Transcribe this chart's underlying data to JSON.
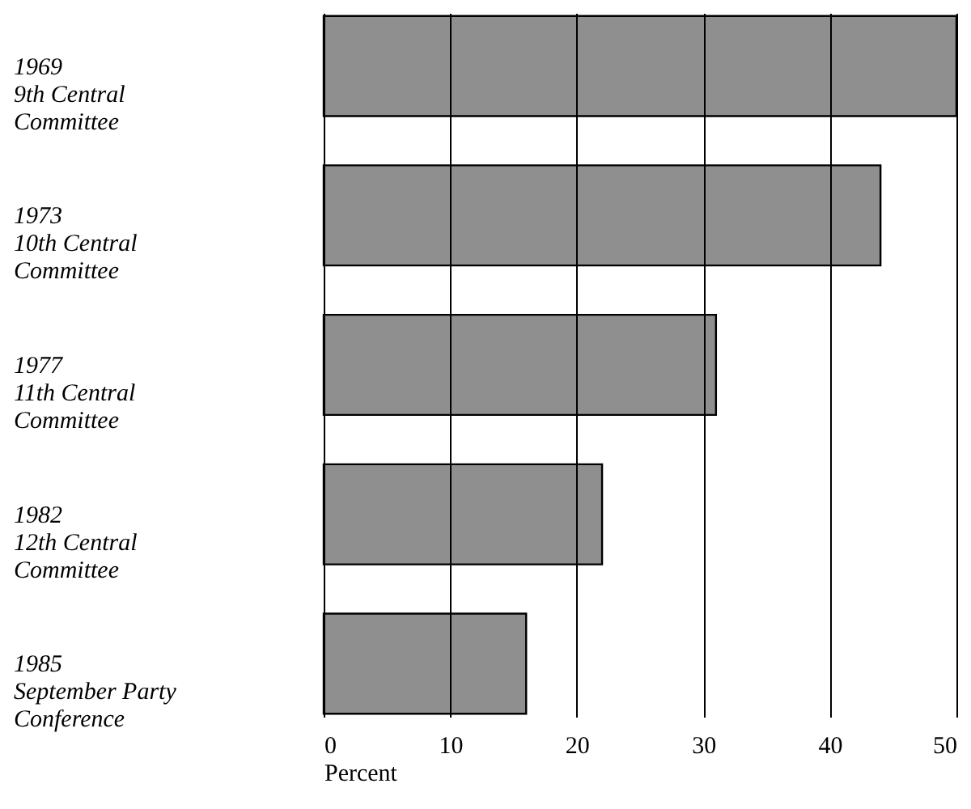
{
  "chart_data": {
    "type": "bar",
    "orientation": "horizontal",
    "categories": [
      "1969\n9th Central\nCommittee",
      "1973\n10th Central\nCommittee",
      "1977\n11th Central\nCommittee",
      "1982\n12th Central\nCommittee",
      "1985\nSeptember Party\nConference"
    ],
    "values": [
      50,
      44,
      31,
      22,
      16
    ],
    "color": "#8f8f8f",
    "xlabel": "Percent",
    "xlim": [
      0,
      50
    ],
    "xticks": [
      0,
      10,
      20,
      30,
      40,
      50
    ],
    "grid": "x"
  }
}
